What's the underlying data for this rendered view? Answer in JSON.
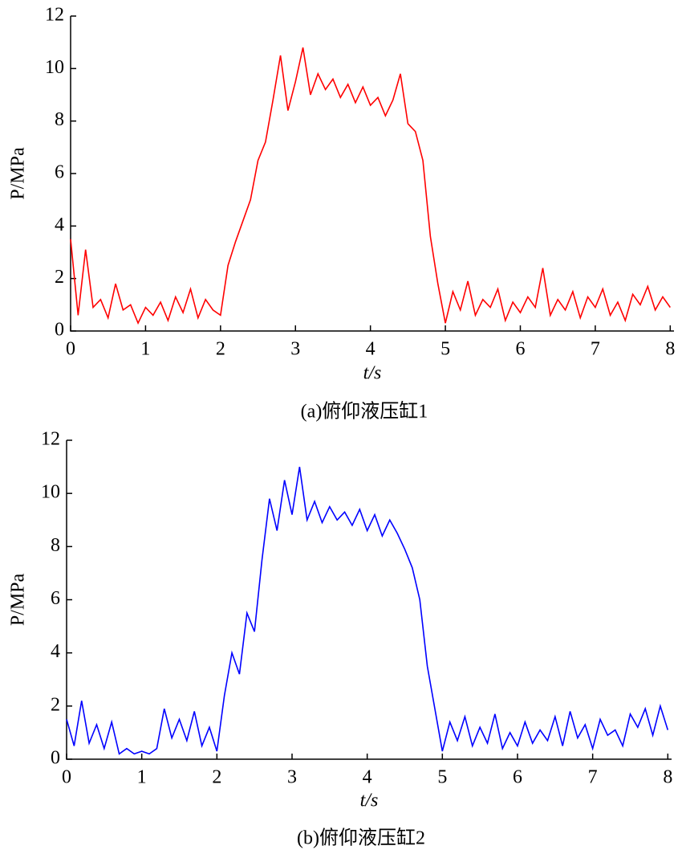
{
  "chart_data": [
    {
      "type": "line",
      "caption": "(a)俯仰液压缸1",
      "x_label": "t/s",
      "y_label": "P/MPa",
      "x": [
        0,
        0.1,
        0.2,
        0.3,
        0.4,
        0.5,
        0.6,
        0.7,
        0.8,
        0.9,
        1,
        1.1,
        1.2,
        1.3,
        1.4,
        1.5,
        1.6,
        1.7,
        1.8,
        1.9,
        2,
        2.1,
        2.2,
        2.3,
        2.4,
        2.5,
        2.6,
        2.7,
        2.8,
        2.9,
        3,
        3.1,
        3.2,
        3.3,
        3.4,
        3.5,
        3.6,
        3.7,
        3.8,
        3.9,
        4,
        4.1,
        4.2,
        4.3,
        4.4,
        4.5,
        4.6,
        4.7,
        4.8,
        4.9,
        5,
        5.1,
        5.2,
        5.3,
        5.4,
        5.5,
        5.6,
        5.7,
        5.8,
        5.9,
        6,
        6.1,
        6.2,
        6.3,
        6.4,
        6.5,
        6.6,
        6.7,
        6.8,
        6.9,
        7,
        7.1,
        7.2,
        7.3,
        7.4,
        7.5,
        7.6,
        7.7,
        7.8,
        7.9,
        8
      ],
      "series": [
        {
          "color": "#ff0000",
          "values": [
            3.5,
            0.6,
            3.1,
            0.9,
            1.2,
            0.5,
            1.8,
            0.8,
            1.0,
            0.3,
            0.9,
            0.6,
            1.1,
            0.4,
            1.3,
            0.7,
            1.6,
            0.5,
            1.2,
            0.8,
            0.6,
            2.5,
            3.4,
            4.2,
            5.0,
            6.5,
            7.2,
            8.8,
            10.5,
            8.4,
            9.5,
            10.8,
            9.0,
            9.8,
            9.2,
            9.6,
            8.9,
            9.4,
            8.7,
            9.3,
            8.6,
            8.9,
            8.2,
            8.8,
            9.8,
            7.9,
            7.6,
            6.5,
            3.6,
            1.8,
            0.3,
            1.5,
            0.8,
            1.9,
            0.6,
            1.2,
            0.9,
            1.6,
            0.4,
            1.1,
            0.7,
            1.3,
            0.9,
            2.4,
            0.6,
            1.2,
            0.8,
            1.5,
            0.5,
            1.3,
            0.9,
            1.6,
            0.6,
            1.1,
            0.4,
            1.4,
            1.0,
            1.7,
            0.8,
            1.3,
            0.9
          ]
        }
      ],
      "xlim": [
        0,
        8.05
      ],
      "xticks": [
        0,
        1,
        2,
        3,
        4,
        5,
        6,
        7,
        8
      ],
      "ylim": [
        0,
        12
      ],
      "yticks": [
        0,
        2,
        4,
        6,
        8,
        10,
        12
      ]
    },
    {
      "type": "line",
      "caption": "(b)俯仰液压缸2",
      "x_label": "t/s",
      "y_label": "P/MPa",
      "x": [
        0,
        0.1,
        0.2,
        0.3,
        0.4,
        0.5,
        0.6,
        0.7,
        0.8,
        0.9,
        1,
        1.1,
        1.2,
        1.3,
        1.4,
        1.5,
        1.6,
        1.7,
        1.8,
        1.9,
        2,
        2.1,
        2.2,
        2.3,
        2.4,
        2.5,
        2.6,
        2.7,
        2.8,
        2.9,
        3,
        3.1,
        3.2,
        3.3,
        3.4,
        3.5,
        3.6,
        3.7,
        3.8,
        3.9,
        4,
        4.1,
        4.2,
        4.3,
        4.4,
        4.5,
        4.6,
        4.7,
        4.8,
        4.9,
        5,
        5.1,
        5.2,
        5.3,
        5.4,
        5.5,
        5.6,
        5.7,
        5.8,
        5.9,
        6,
        6.1,
        6.2,
        6.3,
        6.4,
        6.5,
        6.6,
        6.7,
        6.8,
        6.9,
        7,
        7.1,
        7.2,
        7.3,
        7.4,
        7.5,
        7.6,
        7.7,
        7.8,
        7.9,
        8
      ],
      "series": [
        {
          "color": "#0000ff",
          "values": [
            1.5,
            0.5,
            2.2,
            0.6,
            1.3,
            0.4,
            1.4,
            0.2,
            0.4,
            0.2,
            0.3,
            0.2,
            0.4,
            1.9,
            0.8,
            1.5,
            0.7,
            1.8,
            0.5,
            1.2,
            0.3,
            2.4,
            4.0,
            3.2,
            5.5,
            4.8,
            7.5,
            9.8,
            8.6,
            10.5,
            9.2,
            11.0,
            9.0,
            9.7,
            8.9,
            9.5,
            9.0,
            9.3,
            8.8,
            9.4,
            8.6,
            9.2,
            8.4,
            9.0,
            8.5,
            7.9,
            7.2,
            6.0,
            3.5,
            1.9,
            0.3,
            1.4,
            0.7,
            1.6,
            0.5,
            1.2,
            0.6,
            1.7,
            0.4,
            1.0,
            0.5,
            1.4,
            0.6,
            1.1,
            0.7,
            1.6,
            0.5,
            1.8,
            0.8,
            1.3,
            0.4,
            1.5,
            0.9,
            1.1,
            0.5,
            1.7,
            1.2,
            1.9,
            0.9,
            2.0,
            1.1
          ]
        }
      ],
      "xlim": [
        0,
        8.05
      ],
      "xticks": [
        0,
        1,
        2,
        3,
        4,
        5,
        6,
        7,
        8
      ],
      "ylim": [
        0,
        12
      ],
      "yticks": [
        0,
        2,
        4,
        6,
        8,
        10,
        12
      ]
    }
  ]
}
